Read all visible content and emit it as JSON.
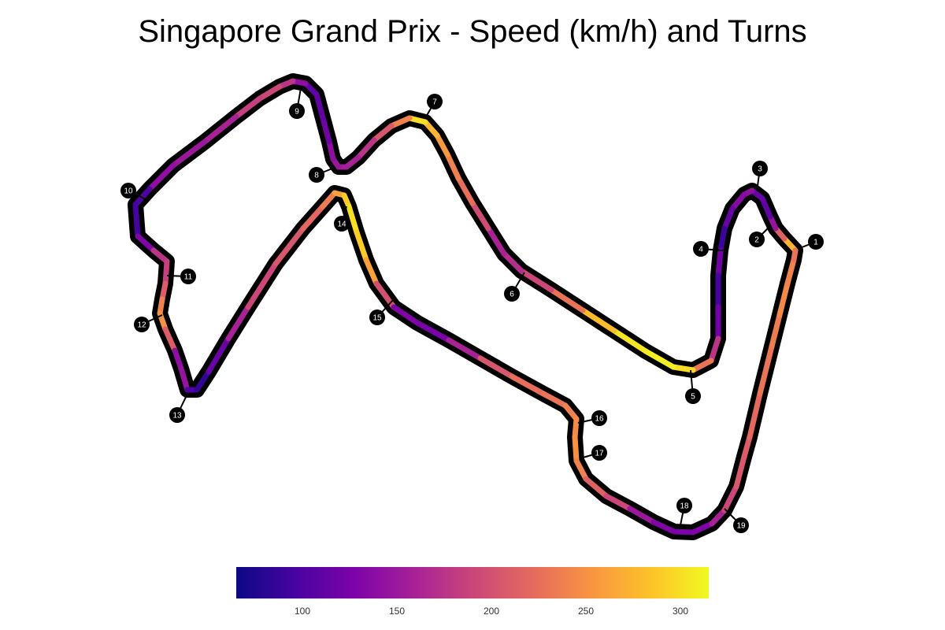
{
  "title": "Singapore Grand Prix - Speed (km/h) and Turns",
  "colorbar": {
    "colormap": "plasma",
    "min": 65,
    "max": 315,
    "ticks": [
      "100",
      "150",
      "200",
      "250",
      "300"
    ],
    "tick_values": [
      100,
      150,
      200,
      250,
      300
    ]
  },
  "turns": [
    {
      "number": "1"
    },
    {
      "number": "2"
    },
    {
      "number": "3"
    },
    {
      "number": "4"
    },
    {
      "number": "5"
    },
    {
      "number": "6"
    },
    {
      "number": "7"
    },
    {
      "number": "8"
    },
    {
      "number": "9"
    },
    {
      "number": "10"
    },
    {
      "number": "11"
    },
    {
      "number": "12"
    },
    {
      "number": "13"
    },
    {
      "number": "14"
    },
    {
      "number": "15"
    },
    {
      "number": "16"
    },
    {
      "number": "17"
    },
    {
      "number": "18"
    },
    {
      "number": "19"
    }
  ],
  "track_speed_kmh": [
    275,
    215,
    145,
    110,
    115,
    140,
    135,
    115,
    90,
    120,
    95,
    120,
    175,
    230,
    300,
    310,
    305,
    280,
    230,
    190,
    170,
    160,
    195,
    225,
    240,
    255,
    275,
    300,
    240,
    205,
    175,
    160,
    155,
    150,
    140,
    120,
    110,
    110,
    140,
    175,
    190,
    185,
    160,
    150,
    140,
    100,
    95,
    130,
    175,
    185,
    210,
    240,
    250,
    210,
    140,
    145,
    100,
    85,
    115,
    160,
    190,
    205,
    220,
    235,
    260,
    290,
    300,
    290,
    260,
    200,
    130,
    125,
    160,
    205,
    225,
    230,
    240,
    245,
    250,
    240,
    215,
    190,
    150,
    130,
    125,
    130,
    160,
    190,
    205,
    210,
    220,
    230,
    235,
    245,
    240,
    230,
    240,
    250,
    270,
    295,
    310,
    305,
    290
  ]
}
